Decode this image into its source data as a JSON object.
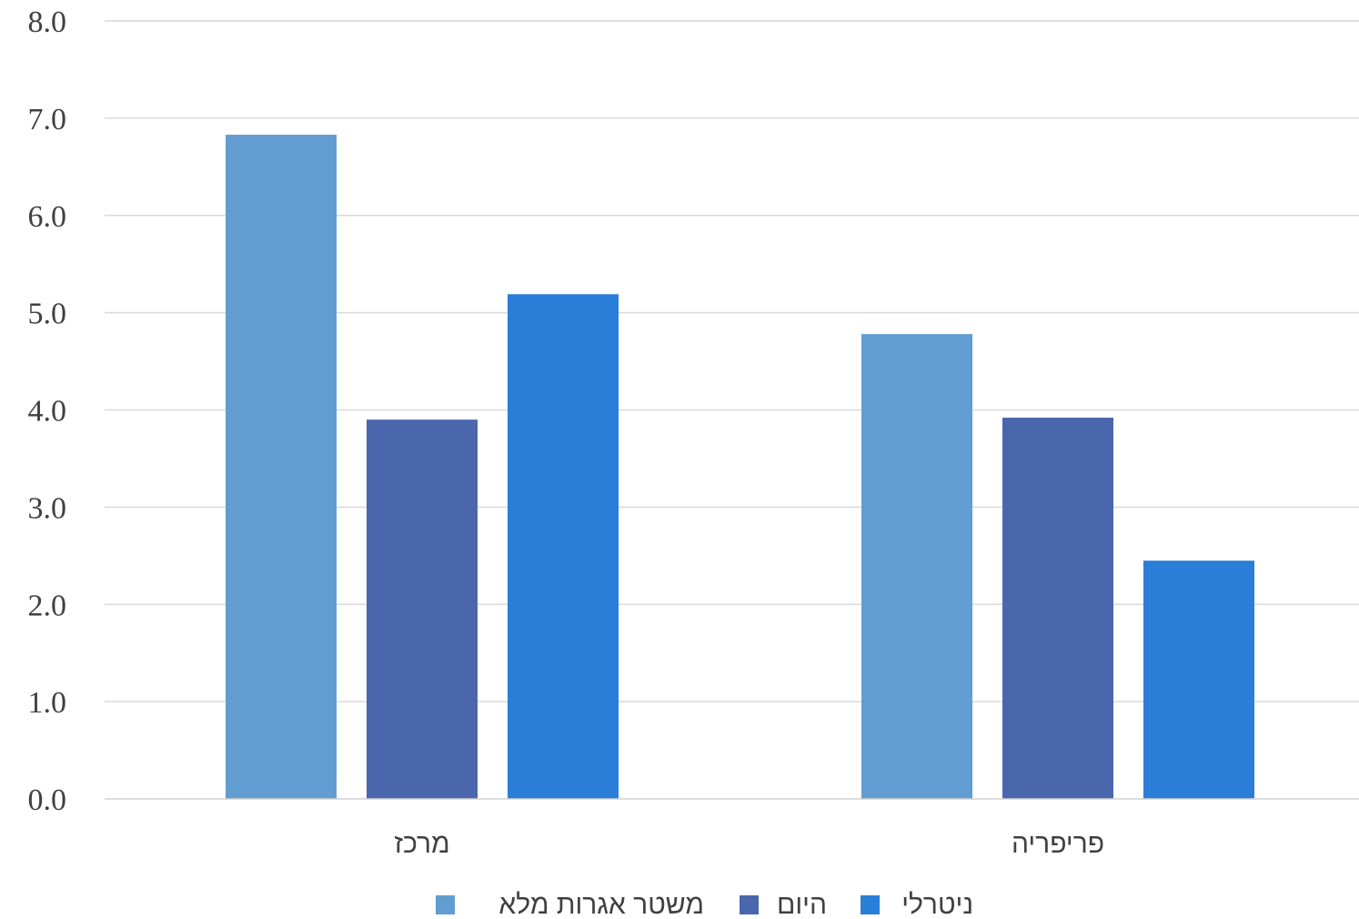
{
  "chart_data": {
    "type": "bar",
    "title": "",
    "xlabel": "",
    "ylabel": "",
    "categories": [
      "מרכז",
      "פריפריה"
    ],
    "y_ticks": [
      "0.0",
      "1.0",
      "2.0",
      "3.0",
      "4.0",
      "5.0",
      "6.0",
      "7.0",
      "8.0"
    ],
    "ylim": [
      0,
      8
    ],
    "grid": true,
    "legend_position": "bottom",
    "series": [
      {
        "name": "משטר אגרות מלא",
        "values": [
          6.83,
          4.78
        ],
        "color": "#619DD1"
      },
      {
        "name": "היום",
        "values": [
          3.9,
          3.92
        ],
        "color": "#4A66AD"
      },
      {
        "name": "ניטרלי",
        "values": [
          5.19,
          2.45
        ],
        "color": "#2B7ED8"
      }
    ]
  }
}
